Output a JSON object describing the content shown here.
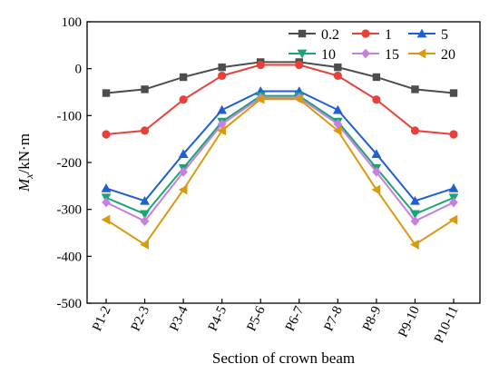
{
  "chart_data": {
    "type": "line",
    "title": "",
    "xlabel": "Section of crown beam",
    "ylabel": "M",
    "ylabel_subscript": "x",
    "ylabel_unit": "/kN·m",
    "ylim": [
      -500,
      100
    ],
    "yticks": [
      100,
      0,
      -100,
      -200,
      -300,
      -400,
      -500
    ],
    "grid": false,
    "legend_position": "top-right",
    "categories": [
      "P1-2",
      "P2-3",
      "P3-4",
      "P4-5",
      "P5-6",
      "P6-7",
      "P7-8",
      "P8-9",
      "P9-10",
      "P10-11"
    ],
    "series": [
      {
        "name": "0.2",
        "color": "#4d4d4d",
        "marker": "square",
        "values": [
          -52,
          -44,
          -18,
          3,
          14,
          14,
          3,
          -18,
          -44,
          -52
        ]
      },
      {
        "name": "1",
        "color": "#e8413a",
        "marker": "circle",
        "values": [
          -140,
          -132,
          -66,
          -15,
          8,
          8,
          -15,
          -66,
          -132,
          -140
        ]
      },
      {
        "name": "5",
        "color": "#1f5fd6",
        "marker": "triangle-up",
        "values": [
          -255,
          -282,
          -182,
          -88,
          -48,
          -48,
          -88,
          -182,
          -282,
          -255
        ]
      },
      {
        "name": "10",
        "color": "#1aa575",
        "marker": "triangle-down",
        "values": [
          -275,
          -310,
          -212,
          -113,
          -58,
          -58,
          -113,
          -212,
          -310,
          -275
        ]
      },
      {
        "name": "15",
        "color": "#c77fe0",
        "marker": "diamond",
        "values": [
          -285,
          -325,
          -220,
          -118,
          -62,
          -62,
          -118,
          -220,
          -325,
          -285
        ]
      },
      {
        "name": "20",
        "color": "#d99a0e",
        "marker": "triangle-left",
        "values": [
          -322,
          -375,
          -258,
          -132,
          -65,
          -65,
          -132,
          -258,
          -375,
          -322
        ]
      }
    ]
  }
}
